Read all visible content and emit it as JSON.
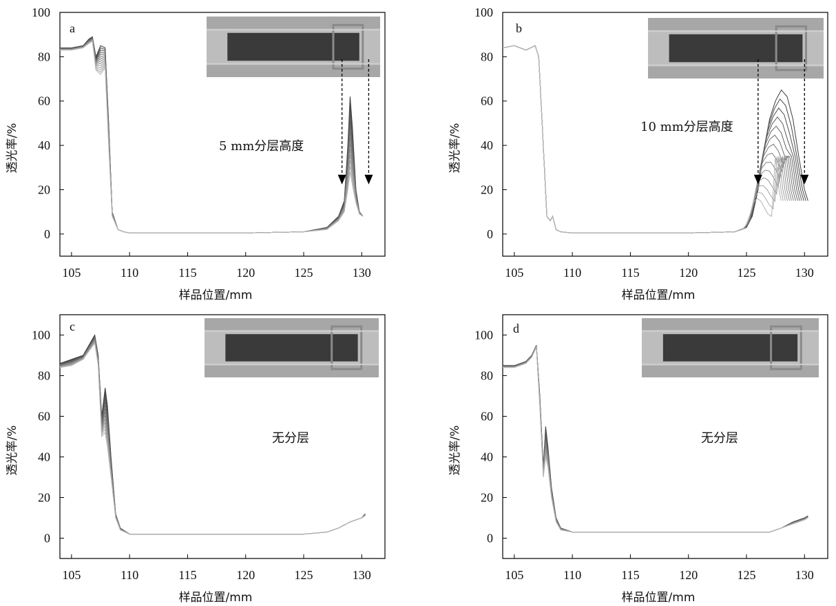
{
  "chart_data": [
    {
      "type": "line",
      "panel_label": "a",
      "xlabel": "样品位置/mm",
      "ylabel": "透光率/%",
      "xlim": [
        104,
        132
      ],
      "ylim": [
        -10,
        100
      ],
      "xticks": [
        "105",
        "110",
        "115",
        "120",
        "125",
        "130"
      ],
      "yticks": [
        "0",
        "20",
        "40",
        "60",
        "80",
        "100"
      ],
      "annotation": "5 mm分层高度",
      "arrows_x_mm": [
        128.3,
        130.6
      ],
      "series_count": 14,
      "series": [
        {
          "x": [
            104,
            105,
            106,
            106.5,
            106.8,
            107.1,
            107.5,
            107.9,
            108.2,
            108.5,
            109,
            109.5,
            110,
            115,
            120,
            125,
            127,
            128,
            128.5,
            128.8,
            129,
            129.2,
            129.5,
            129.8,
            130.1
          ],
          "y": [
            84,
            84,
            85,
            88,
            89,
            80,
            85,
            84,
            50,
            10,
            2,
            1,
            0.5,
            0.5,
            0.5,
            1,
            3,
            8,
            15,
            40,
            62,
            48,
            20,
            10,
            8
          ]
        },
        {
          "x": [
            104,
            105,
            106,
            106.5,
            106.8,
            107.1,
            107.5,
            107.9,
            108.2,
            108.5,
            109,
            109.5,
            110,
            115,
            120,
            125,
            127,
            128,
            128.5,
            128.8,
            129,
            129.2,
            129.5,
            129.8,
            130.1
          ],
          "y": [
            83,
            83,
            84,
            86,
            87,
            74,
            72,
            75,
            40,
            8,
            2,
            1,
            0.5,
            0.5,
            0.5,
            1,
            2,
            6,
            10,
            20,
            28,
            22,
            14,
            9,
            8
          ]
        }
      ]
    },
    {
      "type": "line",
      "panel_label": "b",
      "xlabel": "样品位置/mm",
      "ylabel": "透光率/%",
      "xlim": [
        104,
        132
      ],
      "ylim": [
        -10,
        100
      ],
      "xticks": [
        "105",
        "110",
        "115",
        "120",
        "125",
        "130"
      ],
      "yticks": [
        "0",
        "20",
        "40",
        "60",
        "80",
        "100"
      ],
      "annotation": "10 mm分层高度",
      "arrows_x_mm": [
        126.0,
        130.0
      ],
      "series_count": 14,
      "series": [
        {
          "x": [
            104,
            105,
            106,
            106.8,
            107.1,
            107.4,
            107.8,
            108.1,
            108.3,
            108.6,
            109,
            110,
            115,
            120,
            124,
            125,
            125.5,
            126,
            126.5,
            127,
            127.5,
            128,
            128.5,
            129,
            129.5,
            130,
            130.3
          ],
          "y": [
            84,
            85,
            83,
            85,
            80,
            50,
            8,
            6,
            8,
            2,
            1,
            0.5,
            0.5,
            0.5,
            1,
            3,
            8,
            20,
            38,
            52,
            60,
            65,
            62,
            52,
            35,
            20,
            15
          ]
        },
        {
          "x": [
            104,
            105,
            106,
            106.8,
            107.1,
            107.4,
            107.8,
            108.1,
            108.3,
            108.6,
            109,
            110,
            115,
            120,
            124,
            125,
            126,
            127,
            128,
            128.5,
            129,
            129.5,
            130,
            130.3
          ],
          "y": [
            84,
            85,
            83,
            85,
            80,
            50,
            8,
            6,
            8,
            2,
            1,
            0.5,
            0.5,
            0.5,
            1,
            2,
            4,
            8,
            14,
            16,
            15,
            12,
            9,
            8
          ]
        }
      ]
    },
    {
      "type": "line",
      "panel_label": "c",
      "xlabel": "样品位置/mm",
      "ylabel": "透光率/%",
      "xlim": [
        104,
        132
      ],
      "ylim": [
        -10,
        110
      ],
      "xticks": [
        "105",
        "110",
        "115",
        "120",
        "125",
        "130"
      ],
      "yticks": [
        "0",
        "20",
        "40",
        "60",
        "80",
        "100"
      ],
      "annotation": "无分层",
      "series_count": 14,
      "series": [
        {
          "x": [
            104,
            105,
            106,
            106.5,
            107,
            107.3,
            107.6,
            107.9,
            108.1,
            108.4,
            108.8,
            109.2,
            110,
            115,
            120,
            125,
            127,
            128,
            129,
            130,
            130.3
          ],
          "y": [
            86,
            88,
            90,
            95,
            100,
            90,
            60,
            74,
            65,
            40,
            12,
            5,
            2,
            2,
            2,
            2,
            3,
            5,
            8,
            10,
            12
          ]
        },
        {
          "x": [
            104,
            105,
            106,
            106.5,
            107,
            107.3,
            107.6,
            107.9,
            108.1,
            108.4,
            108.8,
            109.2,
            110,
            115,
            120,
            125,
            127,
            128,
            129,
            130,
            130.3
          ],
          "y": [
            84,
            85,
            88,
            92,
            96,
            85,
            50,
            52,
            45,
            30,
            10,
            4,
            2,
            2,
            2,
            2,
            3,
            5,
            8,
            10,
            11
          ]
        }
      ]
    },
    {
      "type": "line",
      "panel_label": "d",
      "xlabel": "样品位置/mm",
      "ylabel": "透光率/%",
      "xlim": [
        104,
        132
      ],
      "ylim": [
        -10,
        110
      ],
      "xticks": [
        "105",
        "110",
        "115",
        "120",
        "125",
        "130"
      ],
      "yticks": [
        "0",
        "20",
        "40",
        "60",
        "80",
        "100"
      ],
      "annotation": "无分层",
      "series_count": 14,
      "series": [
        {
          "x": [
            104,
            105,
            106,
            106.5,
            106.9,
            107.2,
            107.5,
            107.7,
            107.9,
            108.2,
            108.6,
            109,
            110,
            115,
            120,
            125,
            127,
            128,
            129,
            130,
            130.3
          ],
          "y": [
            85,
            85,
            87,
            90,
            95,
            70,
            35,
            55,
            45,
            25,
            10,
            5,
            3,
            3,
            3,
            3,
            3,
            5,
            8,
            10,
            11
          ]
        },
        {
          "x": [
            104,
            105,
            106,
            106.5,
            106.9,
            107.2,
            107.5,
            107.7,
            107.9,
            108.2,
            108.6,
            109,
            110,
            115,
            120,
            125,
            127,
            128,
            129,
            130,
            130.3
          ],
          "y": [
            84,
            84,
            86,
            89,
            94,
            65,
            30,
            40,
            35,
            20,
            8,
            4,
            3,
            3,
            3,
            3,
            3,
            5,
            7,
            9,
            10
          ]
        }
      ]
    }
  ]
}
